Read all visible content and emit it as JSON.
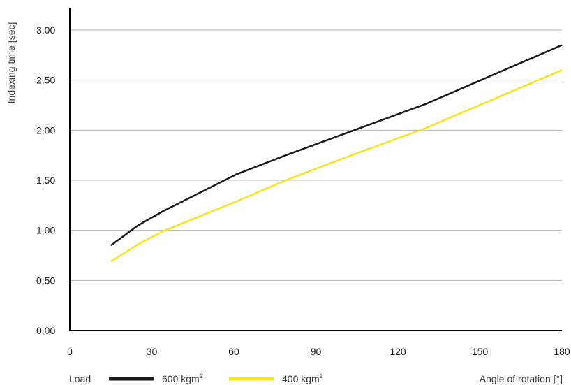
{
  "chart_data": {
    "type": "line",
    "xlabel": "Angle of rotation [°]",
    "ylabel": "Indexing time [sec]",
    "xlim": [
      0,
      180
    ],
    "ylim": [
      0,
      3.2
    ],
    "x_ticks": [
      "0",
      "30",
      "60",
      "90",
      "120",
      "150",
      "180"
    ],
    "x_tick_values": [
      0,
      30,
      60,
      90,
      120,
      150,
      180
    ],
    "y_ticks": [
      "0,00",
      "0,50",
      "1,00",
      "1,50",
      "2,00",
      "2,50",
      "3,00"
    ],
    "y_tick_values": [
      0,
      0.5,
      1.0,
      1.5,
      2.0,
      2.5,
      3.0
    ],
    "grid": "horizontal",
    "legend": {
      "position": "bottom",
      "title": "Load"
    },
    "series": [
      {
        "name": "600 kgm2",
        "name_base": "600 kgm",
        "name_sup": "2",
        "color": "#1a1a1a",
        "x": [
          15,
          25,
          34,
          61,
          79,
          100,
          130,
          180
        ],
        "y": [
          0.85,
          1.05,
          1.19,
          1.56,
          1.75,
          1.96,
          2.26,
          2.85
        ]
      },
      {
        "name": "400 kgm2",
        "name_base": "400 kgm",
        "name_sup": "2",
        "color": "#f7e51c",
        "x": [
          15,
          25,
          34,
          61,
          79,
          100,
          130,
          180
        ],
        "y": [
          0.69,
          0.86,
          0.99,
          1.29,
          1.5,
          1.72,
          2.02,
          2.6
        ]
      }
    ]
  }
}
